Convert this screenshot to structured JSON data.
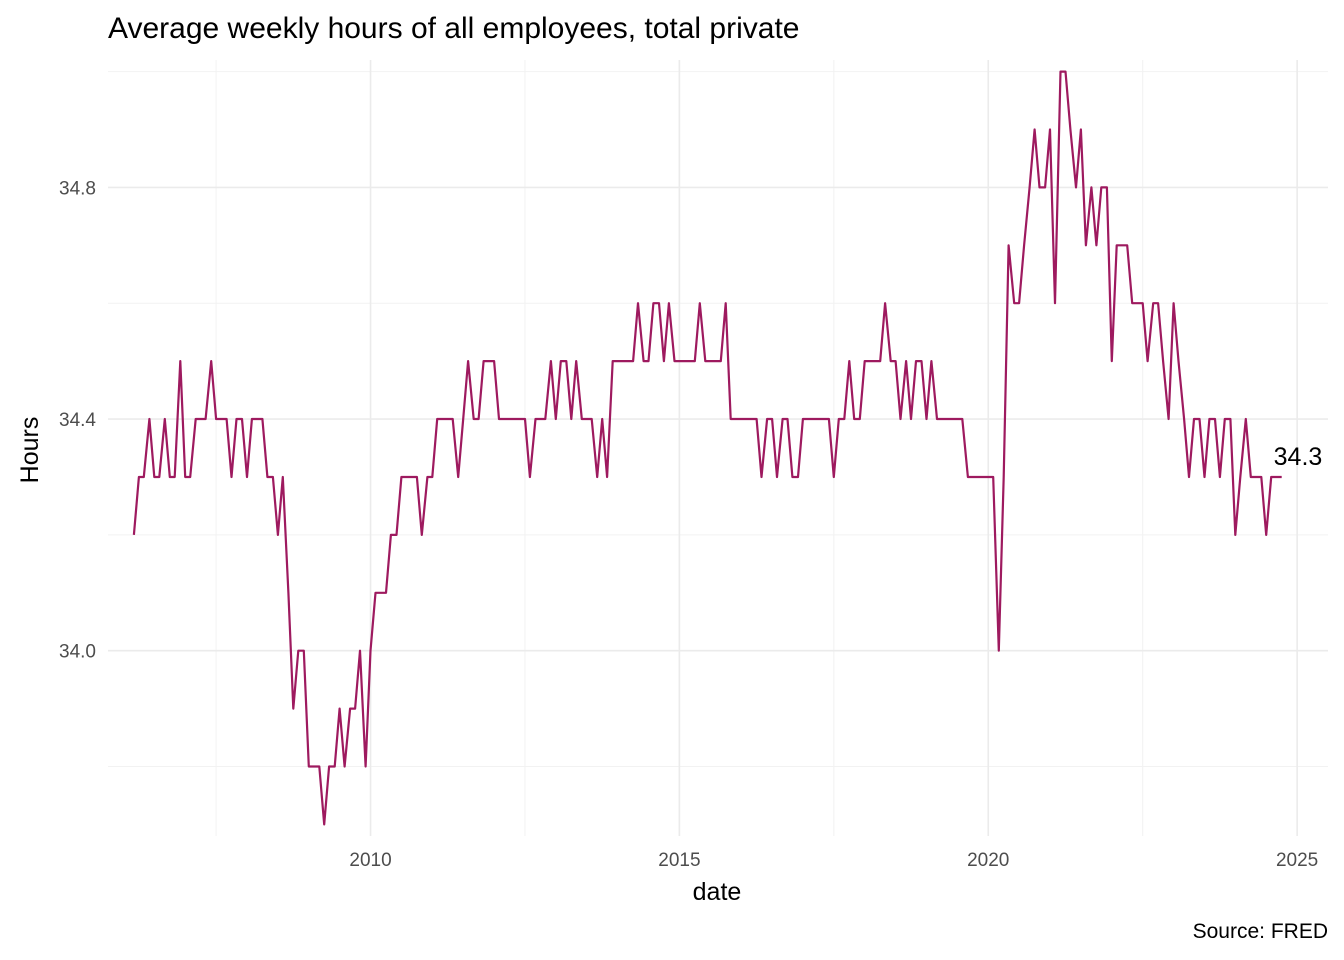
{
  "chart_data": {
    "type": "line",
    "title": "Average weekly hours of all employees, total private",
    "xlabel": "date",
    "ylabel": "Hours",
    "caption": "Source: FRED",
    "end_label": "34.3",
    "x_ticks": [
      "2010",
      "2015",
      "2020",
      "2025"
    ],
    "y_ticks": [
      "34.0",
      "34.4",
      "34.8"
    ],
    "xlim": [
      2005.75,
      2025.5
    ],
    "ylim": [
      33.68,
      35.02
    ],
    "grid": true,
    "legend": "none",
    "colors": {
      "line": "#9e1a5f"
    },
    "series": [
      {
        "x": [
          2006.17,
          2006.25,
          2006.33,
          2006.42,
          2006.5,
          2006.58,
          2006.67,
          2006.75,
          2006.83,
          2006.92,
          2007.0,
          2007.08,
          2007.17,
          2007.25,
          2007.33,
          2007.42,
          2007.5,
          2007.58,
          2007.67,
          2007.75,
          2007.83,
          2007.92,
          2008.0,
          2008.08,
          2008.17,
          2008.25,
          2008.33,
          2008.42,
          2008.5,
          2008.58,
          2008.67,
          2008.75,
          2008.83,
          2008.92,
          2009.0,
          2009.08,
          2009.17,
          2009.25,
          2009.33,
          2009.42,
          2009.5,
          2009.58,
          2009.67,
          2009.75,
          2009.83,
          2009.92,
          2010.0,
          2010.08,
          2010.17,
          2010.25,
          2010.33,
          2010.42,
          2010.5,
          2010.58,
          2010.67,
          2010.75,
          2010.83,
          2010.92,
          2011.0,
          2011.08,
          2011.17,
          2011.25,
          2011.33,
          2011.42,
          2011.5,
          2011.58,
          2011.67,
          2011.75,
          2011.83,
          2011.92,
          2012.0,
          2012.08,
          2012.17,
          2012.25,
          2012.33,
          2012.42,
          2012.5,
          2012.58,
          2012.67,
          2012.75,
          2012.83,
          2012.92,
          2013.0,
          2013.08,
          2013.17,
          2013.25,
          2013.33,
          2013.42,
          2013.5,
          2013.58,
          2013.67,
          2013.75,
          2013.83,
          2013.92,
          2014.0,
          2014.08,
          2014.17,
          2014.25,
          2014.33,
          2014.42,
          2014.5,
          2014.58,
          2014.67,
          2014.75,
          2014.83,
          2014.92,
          2015.0,
          2015.08,
          2015.17,
          2015.25,
          2015.33,
          2015.42,
          2015.5,
          2015.58,
          2015.67,
          2015.75,
          2015.83,
          2015.92,
          2016.0,
          2016.08,
          2016.17,
          2016.25,
          2016.33,
          2016.42,
          2016.5,
          2016.58,
          2016.67,
          2016.75,
          2016.83,
          2016.92,
          2017.0,
          2017.08,
          2017.17,
          2017.25,
          2017.33,
          2017.42,
          2017.5,
          2017.58,
          2017.67,
          2017.75,
          2017.83,
          2017.92,
          2018.0,
          2018.08,
          2018.17,
          2018.25,
          2018.33,
          2018.42,
          2018.5,
          2018.58,
          2018.67,
          2018.75,
          2018.83,
          2018.92,
          2019.0,
          2019.08,
          2019.17,
          2019.25,
          2019.33,
          2019.42,
          2019.5,
          2019.58,
          2019.67,
          2019.75,
          2019.83,
          2019.92,
          2020.0,
          2020.08,
          2020.17,
          2020.25,
          2020.33,
          2020.42,
          2020.5,
          2020.58,
          2020.67,
          2020.75,
          2020.83,
          2020.92,
          2021.0,
          2021.08,
          2021.17,
          2021.25,
          2021.33,
          2021.42,
          2021.5,
          2021.58,
          2021.67,
          2021.75,
          2021.83,
          2021.92,
          2022.0,
          2022.08,
          2022.17,
          2022.25,
          2022.33,
          2022.42,
          2022.5,
          2022.58,
          2022.67,
          2022.75,
          2022.83,
          2022.92,
          2023.0,
          2023.08,
          2023.17,
          2023.25,
          2023.33,
          2023.42,
          2023.5,
          2023.58,
          2023.67,
          2023.75,
          2023.83,
          2023.92,
          2024.0,
          2024.08,
          2024.17,
          2024.25,
          2024.33,
          2024.42,
          2024.5,
          2024.58,
          2024.67,
          2024.75
        ],
        "y": [
          34.2,
          34.3,
          34.3,
          34.4,
          34.3,
          34.3,
          34.4,
          34.3,
          34.3,
          34.5,
          34.3,
          34.3,
          34.4,
          34.4,
          34.4,
          34.5,
          34.4,
          34.4,
          34.4,
          34.3,
          34.4,
          34.4,
          34.3,
          34.4,
          34.4,
          34.4,
          34.3,
          34.3,
          34.2,
          34.3,
          34.1,
          33.9,
          34.0,
          34.0,
          33.8,
          33.8,
          33.8,
          33.7,
          33.8,
          33.8,
          33.9,
          33.8,
          33.9,
          33.9,
          34.0,
          33.8,
          34.0,
          34.1,
          34.1,
          34.1,
          34.2,
          34.2,
          34.3,
          34.3,
          34.3,
          34.3,
          34.2,
          34.3,
          34.3,
          34.4,
          34.4,
          34.4,
          34.4,
          34.3,
          34.4,
          34.5,
          34.4,
          34.4,
          34.5,
          34.5,
          34.5,
          34.4,
          34.4,
          34.4,
          34.4,
          34.4,
          34.4,
          34.3,
          34.4,
          34.4,
          34.4,
          34.5,
          34.4,
          34.5,
          34.5,
          34.4,
          34.5,
          34.4,
          34.4,
          34.4,
          34.3,
          34.4,
          34.3,
          34.5,
          34.5,
          34.5,
          34.5,
          34.5,
          34.6,
          34.5,
          34.5,
          34.6,
          34.6,
          34.5,
          34.6,
          34.5,
          34.5,
          34.5,
          34.5,
          34.5,
          34.6,
          34.5,
          34.5,
          34.5,
          34.5,
          34.6,
          34.4,
          34.4,
          34.4,
          34.4,
          34.4,
          34.4,
          34.3,
          34.4,
          34.4,
          34.3,
          34.4,
          34.4,
          34.3,
          34.3,
          34.4,
          34.4,
          34.4,
          34.4,
          34.4,
          34.4,
          34.3,
          34.4,
          34.4,
          34.5,
          34.4,
          34.4,
          34.5,
          34.5,
          34.5,
          34.5,
          34.6,
          34.5,
          34.5,
          34.4,
          34.5,
          34.4,
          34.5,
          34.5,
          34.4,
          34.5,
          34.4,
          34.4,
          34.4,
          34.4,
          34.4,
          34.4,
          34.3,
          34.3,
          34.3,
          34.3,
          34.3,
          34.3,
          34.0,
          34.3,
          34.7,
          34.6,
          34.6,
          34.7,
          34.8,
          34.9,
          34.8,
          34.8,
          34.9,
          34.6,
          35.0,
          35.0,
          34.9,
          34.8,
          34.9,
          34.7,
          34.8,
          34.7,
          34.8,
          34.8,
          34.5,
          34.7,
          34.7,
          34.7,
          34.6,
          34.6,
          34.6,
          34.5,
          34.6,
          34.6,
          34.5,
          34.4,
          34.6,
          34.5,
          34.4,
          34.3,
          34.4,
          34.4,
          34.3,
          34.4,
          34.4,
          34.3,
          34.4,
          34.4,
          34.2,
          34.3,
          34.4,
          34.3,
          34.3,
          34.3,
          34.2,
          34.3,
          34.3,
          34.3
        ]
      }
    ]
  }
}
